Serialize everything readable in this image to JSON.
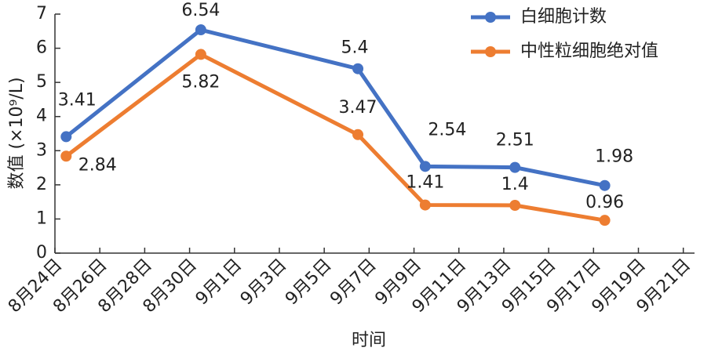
{
  "chart_data": {
    "type": "line",
    "x_label": "时间",
    "y_label": "数值 (×10⁹/L)",
    "x": [
      0.5,
      6.5,
      13.5,
      16.5,
      20.5,
      24.5
    ],
    "xlim": [
      0,
      28.5
    ],
    "xticks": [
      {
        "value": 0,
        "label": "8月24日"
      },
      {
        "value": 2,
        "label": "8月26日"
      },
      {
        "value": 4,
        "label": "8月28日"
      },
      {
        "value": 6,
        "label": "8月30日"
      },
      {
        "value": 8,
        "label": "9月1日"
      },
      {
        "value": 10,
        "label": "9月3日"
      },
      {
        "value": 12,
        "label": "9月5日"
      },
      {
        "value": 14,
        "label": "9月7日"
      },
      {
        "value": 16,
        "label": "9月9日"
      },
      {
        "value": 18,
        "label": "9月11日"
      },
      {
        "value": 20,
        "label": "9月13日"
      },
      {
        "value": 22,
        "label": "9月15日"
      },
      {
        "value": 24,
        "label": "9月17日"
      },
      {
        "value": 26,
        "label": "9月19日"
      },
      {
        "value": 28,
        "label": "9月21日"
      }
    ],
    "ylim": [
      0,
      7
    ],
    "yticks": [
      0,
      1,
      2,
      3,
      4,
      5,
      6,
      7
    ],
    "legend": "top-right",
    "series": [
      {
        "name": "白细胞计数",
        "color": "#4472c4",
        "values": [
          3.41,
          6.54,
          5.4,
          2.54,
          2.51,
          1.98
        ]
      },
      {
        "name": "中性粒细胞绝对值",
        "color": "#ed7d31",
        "values": [
          2.84,
          5.82,
          3.47,
          1.41,
          1.4,
          0.96
        ]
      }
    ]
  }
}
